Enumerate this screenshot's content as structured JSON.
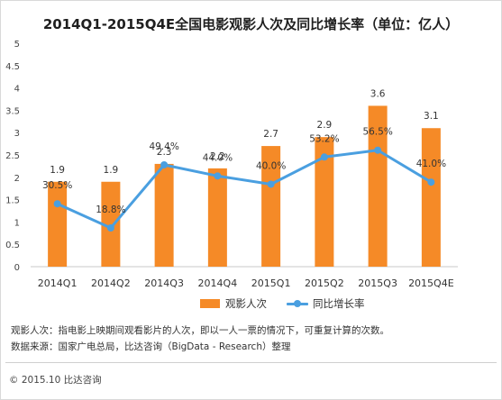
{
  "chart_data": {
    "type": "bar",
    "title": "2014Q1-2015Q4E全国电影观影人次及同比增长率（单位：亿人）",
    "categories": [
      "2014Q1",
      "2014Q2",
      "2014Q3",
      "2014Q4",
      "2015Q1",
      "2015Q2",
      "2015Q3",
      "2015Q4E"
    ],
    "ylim": [
      0,
      5
    ],
    "yticks": [
      "0",
      "0.5",
      "1",
      "1.5",
      "2",
      "2.5",
      "3",
      "3.5",
      "4",
      "4.5",
      "5"
    ],
    "grid": false,
    "legend_position": "bottom",
    "series": [
      {
        "name": "观影人次",
        "type": "bar",
        "color": "#f58a27",
        "values": [
          1.9,
          1.9,
          2.3,
          2.2,
          2.7,
          2.9,
          3.6,
          3.1
        ],
        "labels": [
          "1.9",
          "1.9",
          "2.3",
          "2.2",
          "2.7",
          "2.9",
          "3.6",
          "3.1"
        ]
      },
      {
        "name": "同比增长率",
        "type": "line",
        "color": "#4a9fe0",
        "values": [
          30.5,
          18.8,
          49.4,
          44.0,
          40.0,
          53.2,
          56.5,
          41.0
        ],
        "labels": [
          "30.5%",
          "18.8%",
          "49.4%",
          "44.0%",
          "40.0%",
          "53.2%",
          "56.5%",
          "41.0%"
        ]
      }
    ]
  },
  "notes": {
    "line1": "观影人次：指电影上映期间观看影片的人次，即以一人一票的情况下，可重复计算的次数。",
    "line2": "数据来源：国家广电总局，比达咨询（BigData - Research）整理"
  },
  "footer": "© 2015.10  比达咨询"
}
